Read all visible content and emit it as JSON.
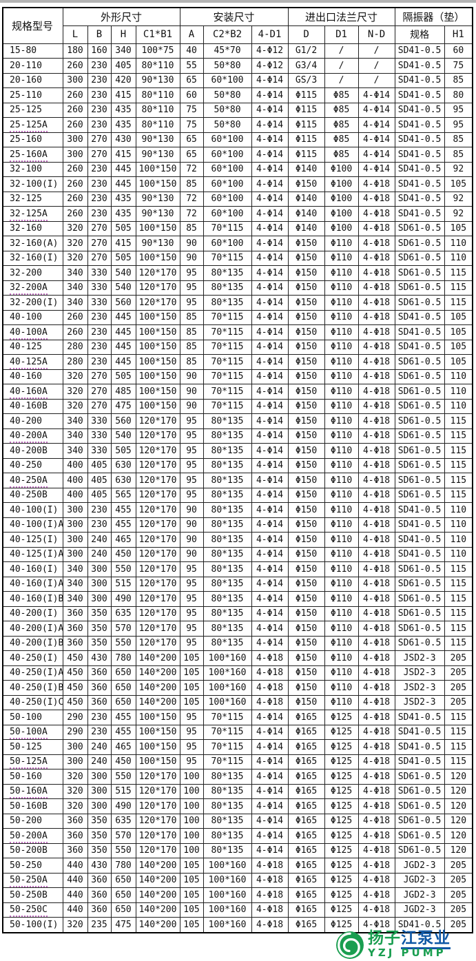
{
  "table": {
    "model_header": "规格型号",
    "groups": [
      {
        "label": "外形尺寸",
        "sub": [
          "L",
          "B",
          "H",
          "C1*B1"
        ]
      },
      {
        "label": "安装尺寸",
        "sub": [
          "A",
          "C2*B2",
          "4-D1"
        ]
      },
      {
        "label": "进出口法兰尺寸",
        "sub": [
          "D",
          "D1",
          "N-D"
        ]
      },
      {
        "label": "隔振器（垫）",
        "sub": [
          "规格",
          "H1"
        ]
      }
    ],
    "rows": [
      {
        "m": "15-80",
        "sq": 0,
        "v": [
          "180",
          "160",
          "340",
          "100*75",
          "40",
          "45*70",
          "4-Φ12",
          "G1/2",
          "/",
          "/",
          "SD41-0.5",
          "60"
        ]
      },
      {
        "m": "20-110",
        "sq": 0,
        "v": [
          "260",
          "230",
          "405",
          "80*110",
          "55",
          "50*80",
          "4-Φ12",
          "G3/4",
          "/",
          "/",
          "SD41-0.5",
          "75"
        ]
      },
      {
        "m": "20-160",
        "sq": 0,
        "v": [
          "300",
          "230",
          "420",
          "90*130",
          "65",
          "60*100",
          "4-Φ14",
          "GS/3",
          "/",
          "/",
          "SD41-0.5",
          "85"
        ]
      },
      {
        "m": "25-110",
        "sq": 0,
        "v": [
          "260",
          "230",
          "415",
          "80*110",
          "60",
          "50*80",
          "4-Φ14",
          "Φ115",
          "Φ85",
          "4-Φ14",
          "SD41-0.5",
          "80"
        ]
      },
      {
        "m": "25-125",
        "sq": 0,
        "v": [
          "260",
          "230",
          "435",
          "80*110",
          "75",
          "50*80",
          "4-Φ14",
          "Φ115",
          "Φ85",
          "4-Φ14",
          "SD41-0.5",
          "95"
        ]
      },
      {
        "m": "25-125A",
        "sq": 1,
        "v": [
          "260",
          "230",
          "435",
          "80*110",
          "75",
          "50*80",
          "4-Φ14",
          "Φ115",
          "Φ85",
          "4-Φ14",
          "SD41-0.5",
          "95"
        ]
      },
      {
        "m": "25-160",
        "sq": 0,
        "v": [
          "300",
          "270",
          "430",
          "90*130",
          "65",
          "60*100",
          "4-Φ14",
          "Φ115",
          "Φ85",
          "4-Φ14",
          "SD41-0.5",
          "85"
        ]
      },
      {
        "m": "25-160A",
        "sq": 1,
        "v": [
          "300",
          "270",
          "415",
          "90*130",
          "65",
          "60*100",
          "4-Φ14",
          "Φ115",
          "Φ85",
          "4-Φ14",
          "SD41-0.5",
          "85"
        ]
      },
      {
        "m": "32-100",
        "sq": 0,
        "v": [
          "260",
          "230",
          "445",
          "100*150",
          "72",
          "60*100",
          "4-Φ14",
          "Φ140",
          "Φ100",
          "4-Φ14",
          "SD41-0.5",
          "92"
        ]
      },
      {
        "m": "32-100(I)",
        "sq": 0,
        "v": [
          "260",
          "230",
          "445",
          "100*150",
          "85",
          "60*100",
          "4-Φ14",
          "Φ150",
          "Φ100",
          "4-Φ18",
          "SD41-0.5",
          "105"
        ]
      },
      {
        "m": "32-125",
        "sq": 0,
        "v": [
          "260",
          "230",
          "435",
          "90*130",
          "72",
          "60*100",
          "4-Φ14",
          "Φ140",
          "Φ100",
          "4-Φ18",
          "SD41-0.5",
          "92"
        ]
      },
      {
        "m": "32-125A",
        "sq": 1,
        "v": [
          "260",
          "230",
          "435",
          "90*130",
          "72",
          "60*100",
          "4-Φ14",
          "Φ140",
          "Φ100",
          "4-Φ18",
          "SD41-0.5",
          "92"
        ]
      },
      {
        "m": "32-160",
        "sq": 0,
        "v": [
          "320",
          "270",
          "505",
          "100*150",
          "85",
          "70*115",
          "4-Φ14",
          "Φ140",
          "Φ100",
          "4-Φ18",
          "SD61-0.5",
          "105"
        ]
      },
      {
        "m": "32-160(A)",
        "sq": 0,
        "v": [
          "320",
          "270",
          "415",
          "90*130",
          "90",
          "60*100",
          "4-Φ14",
          "Φ150",
          "Φ110",
          "4-Φ18",
          "SD61-0.5",
          "110"
        ]
      },
      {
        "m": "32-160(I)",
        "sq": 0,
        "v": [
          "320",
          "270",
          "505",
          "100*150",
          "90",
          "70*115",
          "4-Φ14",
          "Φ150",
          "Φ110",
          "4-Φ18",
          "SD61-0.5",
          "110"
        ]
      },
      {
        "m": "32-200",
        "sq": 0,
        "v": [
          "340",
          "330",
          "540",
          "120*170",
          "95",
          "80*135",
          "4-Φ14",
          "Φ150",
          "Φ110",
          "4-Φ18",
          "SD61-0.5",
          "115"
        ]
      },
      {
        "m": "32-200A",
        "sq": 1,
        "v": [
          "340",
          "330",
          "540",
          "120*170",
          "95",
          "80*135",
          "4-Φ14",
          "Φ150",
          "Φ110",
          "4-Φ18",
          "SD61-0.5",
          "115"
        ]
      },
      {
        "m": "32-200(I)",
        "sq": 0,
        "v": [
          "340",
          "330",
          "560",
          "120*170",
          "95",
          "80*135",
          "4-Φ14",
          "Φ150",
          "Φ110",
          "4-Φ18",
          "SD61-0.5",
          "115"
        ]
      },
      {
        "m": "40-100",
        "sq": 0,
        "v": [
          "260",
          "230",
          "445",
          "100*150",
          "85",
          "70*115",
          "4-Φ14",
          "Φ150",
          "Φ110",
          "4-Φ18",
          "SD41-0.5",
          "105"
        ]
      },
      {
        "m": "40-100A",
        "sq": 1,
        "v": [
          "260",
          "230",
          "445",
          "100*150",
          "85",
          "70*115",
          "4-Φ14",
          "Φ150",
          "Φ110",
          "4-Φ18",
          "SD41-0.5",
          "105"
        ]
      },
      {
        "m": "40-125",
        "sq": 0,
        "v": [
          "280",
          "230",
          "445",
          "100*150",
          "85",
          "70*115",
          "4-Φ14",
          "Φ150",
          "Φ110",
          "4-Φ18",
          "SD41-0.5",
          "105"
        ]
      },
      {
        "m": "40-125A",
        "sq": 1,
        "v": [
          "280",
          "230",
          "445",
          "100*150",
          "85",
          "70*115",
          "4-Φ14",
          "Φ150",
          "Φ110",
          "4-Φ18",
          "SD61-0.5",
          "105"
        ]
      },
      {
        "m": "40-160",
        "sq": 0,
        "v": [
          "320",
          "270",
          "505",
          "100*150",
          "90",
          "70*115",
          "4-Φ14",
          "Φ150",
          "Φ110",
          "4-Φ18",
          "SD61-0.5",
          "110"
        ]
      },
      {
        "m": "40-160A",
        "sq": 1,
        "v": [
          "320",
          "270",
          "485",
          "100*150",
          "90",
          "70*115",
          "4-Φ14",
          "Φ150",
          "Φ110",
          "4-Φ18",
          "SD61-0.5",
          "110"
        ]
      },
      {
        "m": "40-160B",
        "sq": 0,
        "v": [
          "320",
          "270",
          "475",
          "100*150",
          "90",
          "70*115",
          "4-Φ14",
          "Φ150",
          "Φ110",
          "4-Φ18",
          "SD61-0.5",
          "110"
        ]
      },
      {
        "m": "40-200",
        "sq": 0,
        "v": [
          "340",
          "330",
          "560",
          "120*170",
          "95",
          "80*135",
          "4-Φ14",
          "Φ150",
          "Φ110",
          "4-Φ18",
          "SD61-0.5",
          "115"
        ]
      },
      {
        "m": "40-200A",
        "sq": 1,
        "v": [
          "340",
          "330",
          "540",
          "120*170",
          "95",
          "80*135",
          "4-Φ14",
          "Φ150",
          "Φ110",
          "4-Φ18",
          "SD61-0.5",
          "115"
        ]
      },
      {
        "m": "40-200B",
        "sq": 0,
        "v": [
          "340",
          "330",
          "505",
          "120*170",
          "95",
          "80*135",
          "4-Φ14",
          "Φ150",
          "Φ110",
          "4-Φ18",
          "SD61-0.5",
          "115"
        ]
      },
      {
        "m": "40-250",
        "sq": 0,
        "v": [
          "400",
          "405",
          "630",
          "120*170",
          "95",
          "80*135",
          "4-Φ14",
          "Φ150",
          "Φ110",
          "4-Φ18",
          "SD61-0.5",
          "115"
        ]
      },
      {
        "m": "40-250A",
        "sq": 1,
        "v": [
          "400",
          "405",
          "630",
          "120*170",
          "95",
          "80*135",
          "4-Φ14",
          "Φ150",
          "Φ110",
          "4-Φ18",
          "SD61-0.5",
          "115"
        ]
      },
      {
        "m": "40-250B",
        "sq": 0,
        "v": [
          "400",
          "405",
          "565",
          "120*170",
          "95",
          "80*135",
          "4-Φ14",
          "Φ150",
          "Φ110",
          "4-Φ18",
          "SD61-0.5",
          "115"
        ]
      },
      {
        "m": "40-100(I)",
        "sq": 0,
        "v": [
          "300",
          "230",
          "455",
          "120*170",
          "90",
          "80*135",
          "4-Φ14",
          "Φ150",
          "Φ110",
          "4-Φ18",
          "SD41-0.5",
          "110"
        ]
      },
      {
        "m": "40-100(I)A",
        "sq": 0,
        "v": [
          "300",
          "230",
          "455",
          "120*170",
          "90",
          "80*135",
          "4-Φ14",
          "Φ150",
          "Φ110",
          "4-Φ18",
          "SD41-0.5",
          "110"
        ]
      },
      {
        "m": "40-125(I)",
        "sq": 0,
        "v": [
          "300",
          "240",
          "465",
          "120*170",
          "90",
          "80*135",
          "4-Φ14",
          "Φ150",
          "Φ110",
          "4-Φ18",
          "SD41-0.5",
          "110"
        ]
      },
      {
        "m": "40-125(I)A",
        "sq": 0,
        "v": [
          "300",
          "240",
          "450",
          "120*170",
          "90",
          "80*135",
          "4-Φ14",
          "Φ150",
          "Φ110",
          "4-Φ18",
          "SD41-0.5",
          "110"
        ]
      },
      {
        "m": "40-160(I)",
        "sq": 0,
        "v": [
          "340",
          "300",
          "550",
          "120*170",
          "95",
          "80*135",
          "4-Φ14",
          "Φ150",
          "Φ110",
          "4-Φ18",
          "SD61-0.5",
          "115"
        ]
      },
      {
        "m": "40-160(I)A",
        "sq": 0,
        "v": [
          "340",
          "300",
          "515",
          "120*170",
          "95",
          "80*135",
          "4-Φ14",
          "Φ150",
          "Φ110",
          "4-Φ18",
          "SD61-0.5",
          "115"
        ]
      },
      {
        "m": "40-160(I)B",
        "sq": 0,
        "v": [
          "340",
          "300",
          "490",
          "120*170",
          "95",
          "80*135",
          "4-Φ14",
          "Φ150",
          "Φ110",
          "4-Φ18",
          "SD61-0.5",
          "115"
        ]
      },
      {
        "m": "40-200(I)",
        "sq": 0,
        "v": [
          "360",
          "350",
          "635",
          "120*170",
          "95",
          "80*135",
          "4-Φ14",
          "Φ150",
          "Φ110",
          "4-Φ18",
          "SD61-0.5",
          "115"
        ]
      },
      {
        "m": "40-200(I)A",
        "sq": 0,
        "v": [
          "360",
          "350",
          "570",
          "120*170",
          "95",
          "80*135",
          "4-Φ14",
          "Φ150",
          "Φ110",
          "4-Φ18",
          "SD61-0.5",
          "115"
        ]
      },
      {
        "m": "40-200(I)B",
        "sq": 0,
        "v": [
          "360",
          "350",
          "550",
          "120*170",
          "95",
          "80*135",
          "4-Φ14",
          "Φ150",
          "Φ110",
          "4-Φ18",
          "SD61-0.5",
          "115"
        ]
      },
      {
        "m": "40-250(I)",
        "sq": 0,
        "v": [
          "450",
          "430",
          "780",
          "140*200",
          "105",
          "100*160",
          "4-Φ18",
          "Φ150",
          "Φ110",
          "4-Φ18",
          "JSD2-3",
          "205"
        ]
      },
      {
        "m": "40-250(I)A",
        "sq": 0,
        "v": [
          "450",
          "360",
          "650",
          "140*200",
          "105",
          "100*160",
          "4-Φ18",
          "Φ150",
          "Φ110",
          "4-Φ18",
          "JSD2-3",
          "205"
        ]
      },
      {
        "m": "40-250(I)B",
        "sq": 0,
        "v": [
          "450",
          "360",
          "650",
          "140*200",
          "105",
          "100*160",
          "4-Φ18",
          "Φ150",
          "Φ110",
          "4-Φ18",
          "JSD2-3",
          "205"
        ]
      },
      {
        "m": "40-250(I)C",
        "sq": 0,
        "v": [
          "450",
          "360",
          "650",
          "140*200",
          "105",
          "100*160",
          "4-Φ18",
          "Φ150",
          "Φ110",
          "4-Φ18",
          "JSD2-3",
          "205"
        ]
      },
      {
        "m": "50-100",
        "sq": 0,
        "v": [
          "290",
          "230",
          "455",
          "100*150",
          "95",
          "70*115",
          "4-Φ14",
          "Φ165",
          "Φ125",
          "4-Φ18",
          "SD41-0.5",
          "115"
        ]
      },
      {
        "m": "50-100A",
        "sq": 1,
        "v": [
          "290",
          "230",
          "455",
          "100*150",
          "95",
          "70*115",
          "4-Φ14",
          "Φ165",
          "Φ125",
          "4-Φ18",
          "SD41-0.5",
          "115"
        ]
      },
      {
        "m": "50-125",
        "sq": 0,
        "v": [
          "300",
          "240",
          "465",
          "100*150",
          "95",
          "70*115",
          "4-Φ14",
          "Φ165",
          "Φ125",
          "4-Φ18",
          "SD41-0.5",
          "115"
        ]
      },
      {
        "m": "50-125A",
        "sq": 1,
        "v": [
          "300",
          "240",
          "450",
          "100*150",
          "95",
          "70*115",
          "4-Φ14",
          "Φ165",
          "Φ125",
          "4-Φ18",
          "SD41-0.5",
          "115"
        ]
      },
      {
        "m": "50-160",
        "sq": 0,
        "v": [
          "320",
          "300",
          "550",
          "120*170",
          "100",
          "80*135",
          "4-Φ14",
          "Φ165",
          "Φ125",
          "4-Φ18",
          "SD61-0.5",
          "120"
        ]
      },
      {
        "m": "50-160A",
        "sq": 1,
        "v": [
          "320",
          "300",
          "515",
          "120*170",
          "100",
          "80*135",
          "4-Φ14",
          "Φ165",
          "Φ125",
          "4-Φ18",
          "SD61-0.5",
          "120"
        ]
      },
      {
        "m": "50-160B",
        "sq": 0,
        "v": [
          "320",
          "300",
          "490",
          "120*170",
          "100",
          "80*135",
          "4-Φ14",
          "Φ165",
          "Φ125",
          "4-Φ18",
          "SD61-0.5",
          "120"
        ]
      },
      {
        "m": "50-200",
        "sq": 0,
        "v": [
          "360",
          "350",
          "635",
          "120*170",
          "100",
          "80*135",
          "4-Φ14",
          "Φ165",
          "Φ125",
          "4-Φ18",
          "SD61-0.5",
          "120"
        ]
      },
      {
        "m": "50-200A",
        "sq": 1,
        "v": [
          "360",
          "350",
          "570",
          "120*170",
          "100",
          "80*135",
          "4-Φ14",
          "Φ165",
          "Φ125",
          "4-Φ18",
          "SD61-0.5",
          "120"
        ]
      },
      {
        "m": "50-200B",
        "sq": 0,
        "v": [
          "360",
          "350",
          "550",
          "120*170",
          "100",
          "80*135",
          "4-Φ14",
          "Φ165",
          "Φ125",
          "4-Φ18",
          "SD61-0.5",
          "120"
        ]
      },
      {
        "m": "50-250",
        "sq": 0,
        "v": [
          "440",
          "430",
          "780",
          "140*200",
          "105",
          "100*160",
          "4-Φ18",
          "Φ165",
          "Φ125",
          "4-Φ18",
          "JGD2-3",
          "205"
        ]
      },
      {
        "m": "50-250A",
        "sq": 1,
        "v": [
          "440",
          "360",
          "650",
          "140*200",
          "105",
          "100*160",
          "4-Φ18",
          "Φ165",
          "Φ125",
          "4-Φ18",
          "JGD2-3",
          "205"
        ]
      },
      {
        "m": "50-250B",
        "sq": 0,
        "v": [
          "440",
          "360",
          "650",
          "140*200",
          "105",
          "100*160",
          "4-Φ18",
          "Φ165",
          "Φ125",
          "4-Φ18",
          "JGD2-3",
          "205"
        ]
      },
      {
        "m": "50-250C",
        "sq": 1,
        "v": [
          "440",
          "360",
          "650",
          "140*200",
          "105",
          "100*160",
          "4-Φ18",
          "Φ165",
          "Φ125",
          "4-Φ18",
          "JGD2-3",
          "205"
        ]
      },
      {
        "m": "50-100(I)",
        "sq": 0,
        "v": [
          "320",
          "235",
          "475",
          "140*200",
          "105",
          "100*160",
          "4-Φ18",
          "Φ165",
          "Φ125",
          "4-Φ18",
          "SD41-0.5",
          "205"
        ]
      }
    ]
  },
  "logo": {
    "cn_green": "扬子",
    "cn_blue": "江泵业",
    "en": "YZJ PUMP",
    "brand_green": "#1a9e50",
    "brand_blue": "#0e57a5"
  }
}
